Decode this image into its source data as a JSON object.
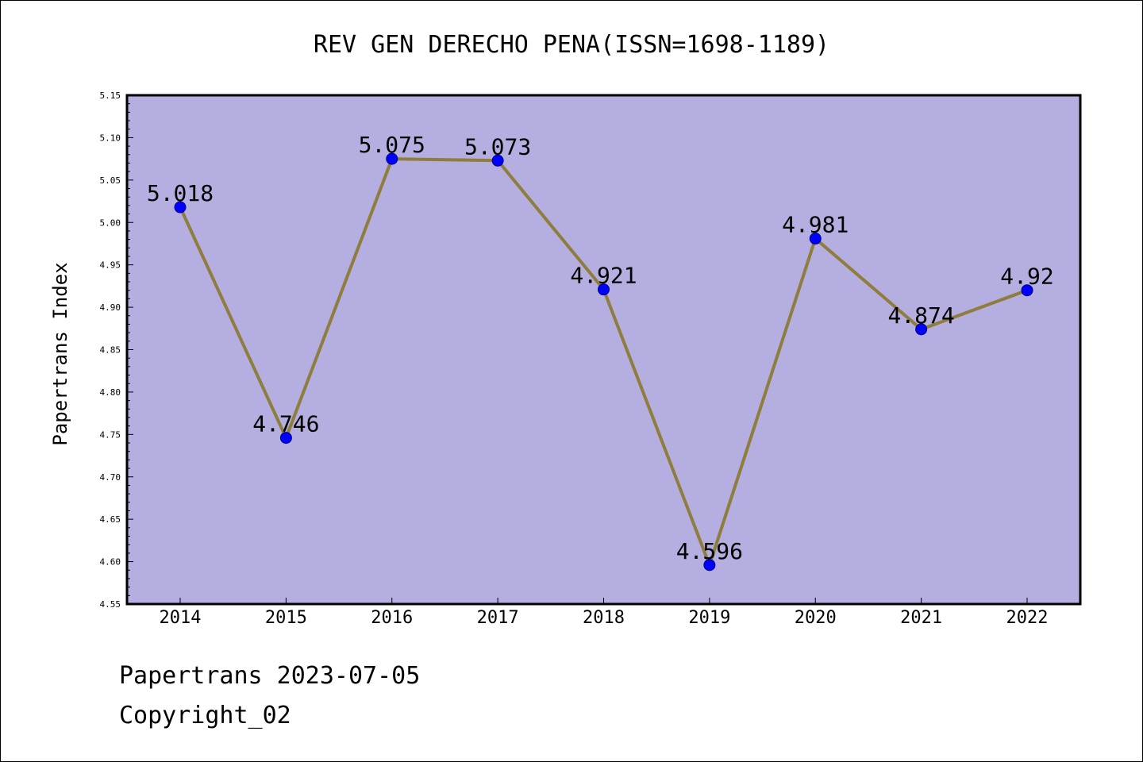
{
  "chart_data": {
    "type": "line",
    "title": "REV GEN DERECHO PENA(ISSN=1698-1189)",
    "xlabel": "",
    "ylabel": "Papertrans Index",
    "categories": [
      "2014",
      "2015",
      "2016",
      "2017",
      "2018",
      "2019",
      "2020",
      "2021",
      "2022"
    ],
    "series": [
      {
        "values": [
          5.018,
          4.746,
          5.075,
          5.073,
          4.921,
          4.596,
          4.981,
          4.874,
          4.92
        ],
        "labels": [
          "5.018",
          "4.746",
          "5.075",
          "5.073",
          "4.921",
          "4.596",
          "4.981",
          "4.874",
          "4.92"
        ]
      }
    ],
    "ylim": [
      4.55,
      5.15
    ],
    "yticks": [
      "4.55",
      "4.60",
      "4.65",
      "4.70",
      "4.75",
      "4.80",
      "4.85",
      "4.90",
      "4.95",
      "5.00",
      "5.05",
      "5.10",
      "5.15"
    ],
    "grid": false,
    "legend": "none",
    "colors": {
      "plot_background": "#b5aee0",
      "line": "#8e7d3c",
      "marker": "#0000ff",
      "marker_edge": "#000080"
    }
  },
  "footer": {
    "line1": "Papertrans 2023-07-05",
    "line2": "Copyright_02"
  }
}
